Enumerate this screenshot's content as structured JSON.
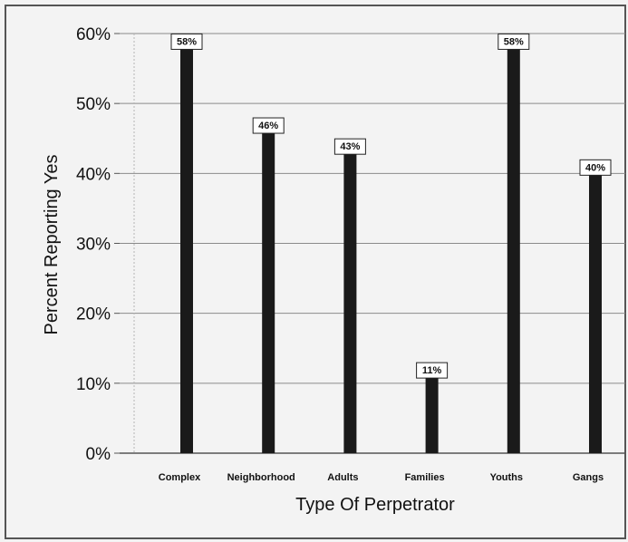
{
  "chart_data": {
    "type": "bar",
    "title": "",
    "xlabel": "Type Of Perpetrator",
    "ylabel": "Percent Reporting Yes",
    "categories": [
      "Complex",
      "Neighborhood",
      "Adults",
      "Families",
      "Youths",
      "Gangs"
    ],
    "values": [
      58,
      46,
      43,
      11,
      58,
      40
    ],
    "value_labels": [
      "58%",
      "46%",
      "43%",
      "11%",
      "58%",
      "40%"
    ],
    "ylim": [
      0,
      60
    ],
    "yticks": [
      0,
      10,
      20,
      30,
      40,
      50,
      60
    ],
    "ytick_labels": [
      "0%",
      "10%",
      "20%",
      "30%",
      "40%",
      "50%",
      "60%"
    ],
    "grid": true,
    "legend": "none",
    "colors": {
      "bar": "#1a1a1a",
      "grid": "#8a8a8a",
      "background": "#f3f3f3",
      "frame": "#555555",
      "text": "#111111"
    }
  }
}
